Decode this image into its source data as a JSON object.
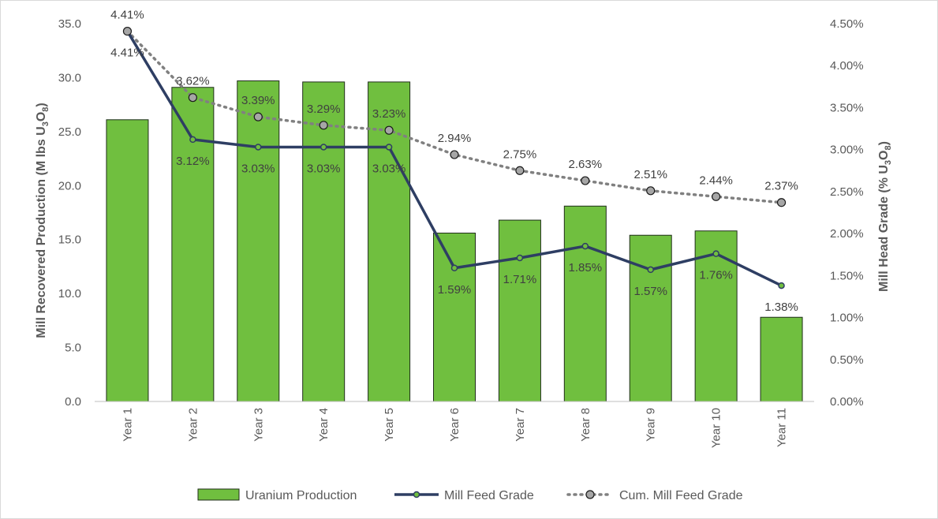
{
  "chart_data": {
    "type": "bar",
    "categories": [
      "Year 1",
      "Year 2",
      "Year 3",
      "Year 4",
      "Year 5",
      "Year 6",
      "Year 7",
      "Year 8",
      "Year 9",
      "Year 10",
      "Year 11"
    ],
    "series": [
      {
        "name": "Uranium Production",
        "type": "bar",
        "axis": "left",
        "color": "#70bf3f",
        "values": [
          26.1,
          29.1,
          29.7,
          29.6,
          29.6,
          15.6,
          16.8,
          18.1,
          15.4,
          15.8,
          7.8
        ]
      },
      {
        "name": "Mill Feed Grade",
        "type": "line",
        "axis": "right",
        "color": "#2e3e63",
        "values": [
          4.41,
          3.12,
          3.03,
          3.03,
          3.03,
          1.59,
          1.71,
          1.85,
          1.57,
          1.76,
          1.38
        ],
        "labels": [
          "4.41%",
          "3.12%",
          "3.03%",
          "3.03%",
          "3.03%",
          "1.59%",
          "1.71%",
          "1.85%",
          "1.57%",
          "1.76%",
          "1.38%"
        ]
      },
      {
        "name": "Cum. Mill Feed Grade",
        "type": "line-dotted",
        "axis": "right",
        "color": "#808080",
        "values": [
          4.41,
          3.62,
          3.39,
          3.29,
          3.23,
          2.94,
          2.75,
          2.63,
          2.51,
          2.44,
          2.37
        ],
        "labels": [
          "4.41%",
          "3.62%",
          "3.39%",
          "3.29%",
          "3.23%",
          "2.94%",
          "2.75%",
          "2.63%",
          "2.51%",
          "2.44%",
          "2.37%"
        ]
      }
    ],
    "y_left": {
      "title_main": "Mill Recovered Production (M lbs U",
      "title_sub3": "3",
      "title_o": "O",
      "title_sub8": "8",
      "title_close": ")",
      "min": 0,
      "max": 35,
      "step": 5,
      "tick_labels": [
        "0.0",
        "5.0",
        "10.0",
        "15.0",
        "20.0",
        "25.0",
        "30.0",
        "35.0"
      ]
    },
    "y_right": {
      "title_main": "Mill Head Grade (% U",
      "title_sub3": "3",
      "title_o": "O",
      "title_sub8": "8",
      "title_close": ")",
      "min": 0,
      "max": 4.5,
      "step": 0.5,
      "tick_labels": [
        "0.00%",
        "0.50%",
        "1.00%",
        "1.50%",
        "2.00%",
        "2.50%",
        "3.00%",
        "3.50%",
        "4.00%",
        "4.50%"
      ]
    },
    "legend": {
      "position": "bottom",
      "items": [
        "Uranium Production",
        "Mill Feed Grade",
        "Cum. Mill Feed Grade"
      ]
    },
    "grid": false
  }
}
